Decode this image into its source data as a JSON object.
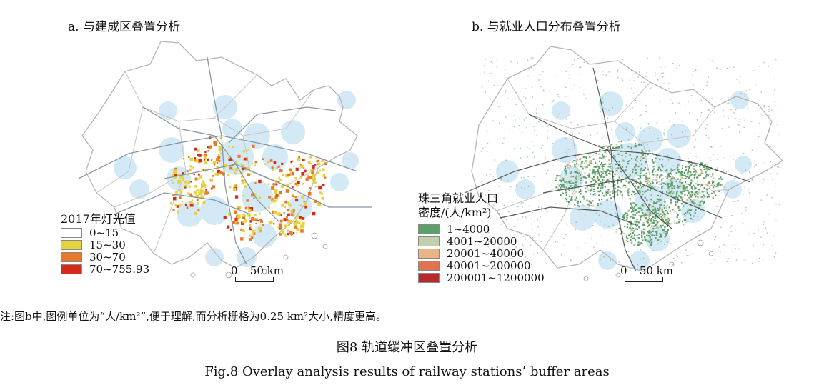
{
  "panel_a": {
    "title": "a. 与建成区叠置分析",
    "legend_title": "2017年灯光值",
    "legend": [
      {
        "label": "0~15",
        "color": "#ffffff"
      },
      {
        "label": "15~30",
        "color": "#e6d23c"
      },
      {
        "label": "30~70",
        "color": "#e8782a"
      },
      {
        "label": "70~755.93",
        "color": "#d62a1e"
      }
    ],
    "scale": {
      "zero": "0",
      "label": "50 km"
    }
  },
  "panel_b": {
    "title": "b. 与就业人口分布叠置分析",
    "legend_title_1": "珠三角就业人口",
    "legend_title_2": "密度/(人/km²)",
    "legend": [
      {
        "label": "1~4000",
        "color": "#5e9e6a"
      },
      {
        "label": "4001~20000",
        "color": "#c2cfac"
      },
      {
        "label": "20001~40000",
        "color": "#e9b584"
      },
      {
        "label": "40001~200000",
        "color": "#e07352"
      },
      {
        "label": "200001~1200000",
        "color": "#b8292b"
      }
    ],
    "scale": {
      "zero": "0",
      "label": "50 km"
    }
  },
  "colors": {
    "buffer": "#cce6f4",
    "boundary": "#b5b5b5",
    "rail": "#7d8c99"
  },
  "note": "注:图b中,图例单位为“人/km²”,便于理解,而分析栅格为0.25 km²大小,精度更高。",
  "caption_cn": "图8   轨道缓冲区叠置分析",
  "caption_en": "Fig.8   Overlay analysis results of railway stations’ buffer areas"
}
